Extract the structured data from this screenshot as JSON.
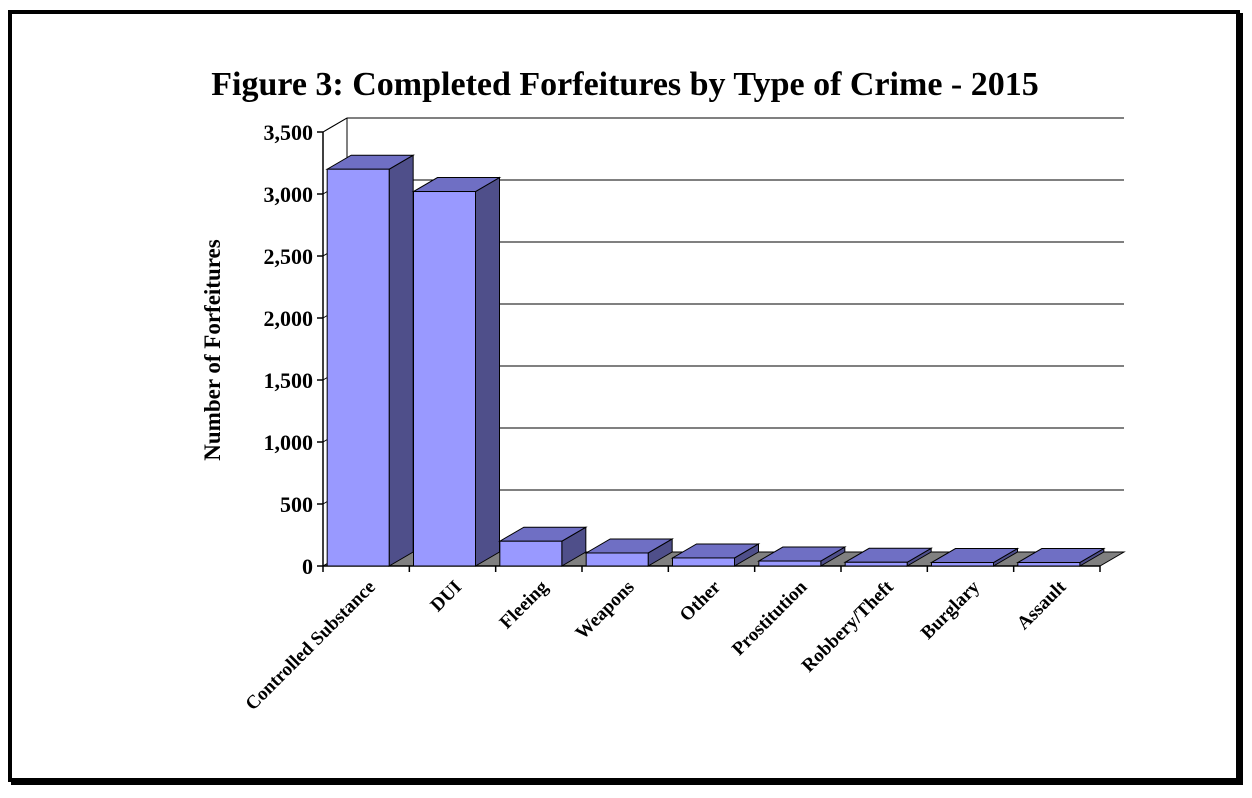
{
  "chart_data": {
    "type": "bar",
    "title": "Figure 3:  Completed Forfeitures by Type of Crime - 2015",
    "xlabel": "",
    "ylabel": "Number of Forfeitures",
    "categories": [
      "Controlled Substance",
      "DUI",
      "Fleeing",
      "Weapons",
      "Other",
      "Prostitution",
      "Robbery/Theft",
      "Burglary",
      "Assault"
    ],
    "values": [
      3200,
      3020,
      200,
      105,
      65,
      40,
      30,
      28,
      28
    ],
    "ylim": [
      0,
      3500
    ],
    "yticks": [
      0,
      500,
      1000,
      1500,
      2000,
      2500,
      3000,
      3500
    ],
    "ytick_labels": [
      "0",
      "500",
      "1,000",
      "1,500",
      "2,000",
      "2,500",
      "3,000",
      "3,500"
    ],
    "grid": true,
    "three_d": true,
    "colors": {
      "bar_front": "#9999ff",
      "bar_side": "#4f4f8a",
      "bar_top": "#6f6fc4",
      "floor": "#808080",
      "frame": "#000000"
    }
  }
}
